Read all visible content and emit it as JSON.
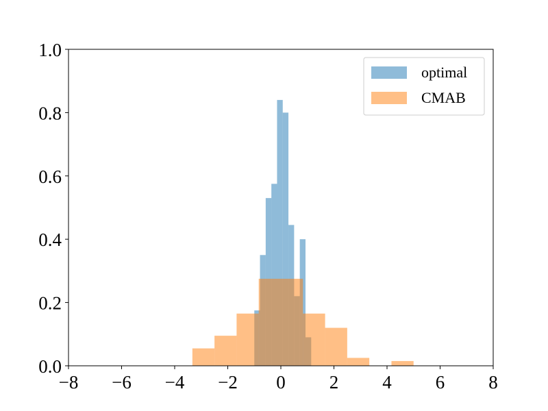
{
  "chart_data": {
    "type": "histogram",
    "title": "",
    "xlabel": "",
    "ylabel": "",
    "xlim": [
      -8,
      8
    ],
    "ylim": [
      0,
      1
    ],
    "xticks": [
      -8,
      -6,
      -4,
      -2,
      0,
      2,
      4,
      6,
      8
    ],
    "xtick_labels": [
      "−8",
      "−6",
      "−4",
      "−2",
      "0",
      "2",
      "4",
      "6",
      "8"
    ],
    "yticks": [
      0,
      0.2,
      0.4,
      0.6,
      0.8,
      1.0
    ],
    "ytick_labels": [
      "0.0",
      "0.2",
      "0.4",
      "0.6",
      "0.8",
      "1.0"
    ],
    "grid": false,
    "legend_position": "top-right",
    "series": [
      {
        "name": "optimal",
        "color": "#1f77b4",
        "alpha": 0.5,
        "bin_edges": [
          -1.0,
          -0.786,
          -0.571,
          -0.357,
          -0.143,
          0.071,
          0.286,
          0.5,
          0.714,
          0.929,
          1.143
        ],
        "values": [
          0.175,
          0.35,
          0.53,
          0.575,
          0.84,
          0.8,
          0.445,
          0.22,
          0.4,
          0.09
        ]
      },
      {
        "name": "CMAB",
        "color": "#ff7f0e",
        "alpha": 0.5,
        "bin_edges": [
          -3.333,
          -2.5,
          -1.667,
          -0.833,
          0.0,
          0.833,
          1.667,
          2.5,
          3.333,
          4.167,
          5.0
        ],
        "values": [
          0.055,
          0.095,
          0.165,
          0.275,
          0.275,
          0.165,
          0.12,
          0.025,
          0.0,
          0.015
        ]
      }
    ]
  }
}
